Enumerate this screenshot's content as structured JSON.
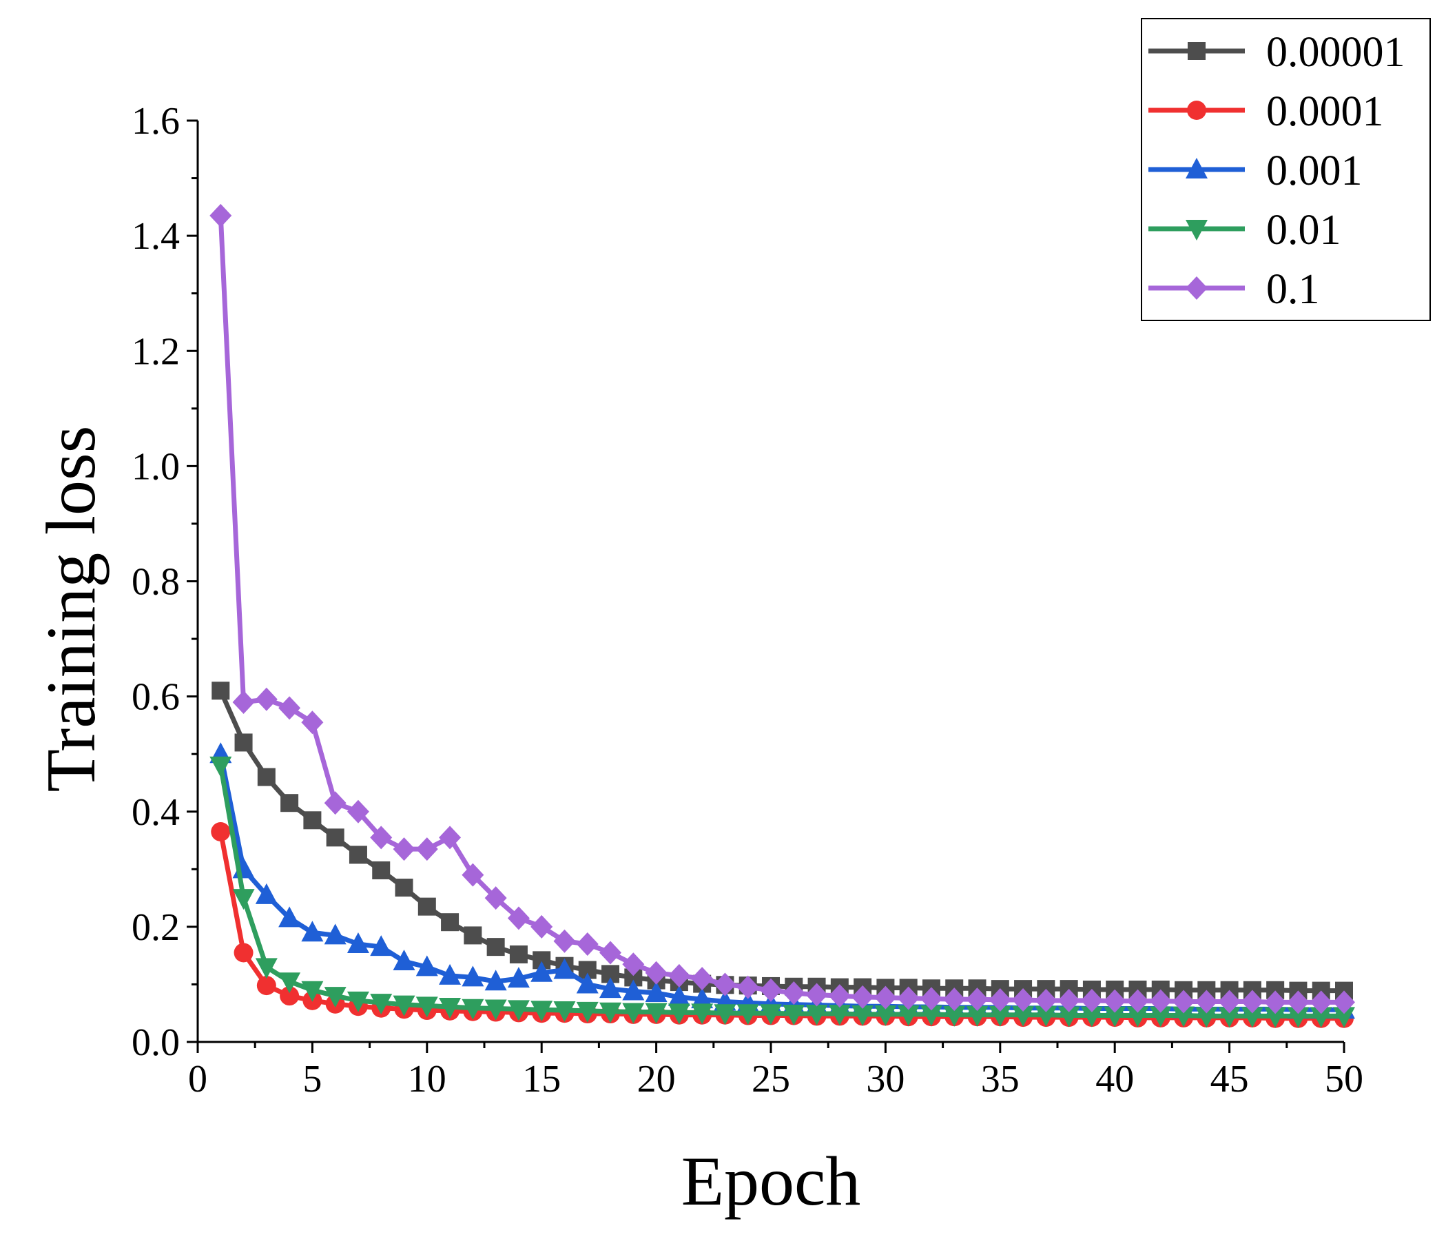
{
  "chart_data": {
    "type": "line",
    "title": "",
    "xlabel": "Epoch",
    "ylabel": "Training loss",
    "xlim": [
      0,
      50
    ],
    "ylim": [
      0.0,
      1.6
    ],
    "xticks": [
      "0",
      "5",
      "10",
      "15",
      "20",
      "25",
      "30",
      "35",
      "40",
      "45",
      "50"
    ],
    "yticks": [
      "0.0",
      "0.2",
      "0.4",
      "0.6",
      "0.8",
      "1.0",
      "1.2",
      "1.4",
      "1.6"
    ],
    "grid": false,
    "legend_position": "top-right",
    "x": [
      1,
      2,
      3,
      4,
      5,
      6,
      7,
      8,
      9,
      10,
      11,
      12,
      13,
      14,
      15,
      16,
      17,
      18,
      19,
      20,
      21,
      22,
      23,
      24,
      25,
      26,
      27,
      28,
      29,
      30,
      31,
      32,
      33,
      34,
      35,
      36,
      37,
      38,
      39,
      40,
      41,
      42,
      43,
      44,
      45,
      46,
      47,
      48,
      49,
      50
    ],
    "series": [
      {
        "name": "0.00001",
        "color": "#4d4d4d",
        "marker": "square",
        "values": [
          0.61,
          0.52,
          0.46,
          0.415,
          0.385,
          0.355,
          0.325,
          0.298,
          0.268,
          0.235,
          0.208,
          0.185,
          0.165,
          0.152,
          0.142,
          0.132,
          0.125,
          0.118,
          0.112,
          0.107,
          0.104,
          0.101,
          0.099,
          0.098,
          0.097,
          0.096,
          0.096,
          0.095,
          0.095,
          0.094,
          0.094,
          0.093,
          0.093,
          0.093,
          0.092,
          0.092,
          0.092,
          0.092,
          0.091,
          0.091,
          0.091,
          0.091,
          0.09,
          0.09,
          0.09,
          0.09,
          0.09,
          0.089,
          0.089,
          0.089
        ]
      },
      {
        "name": "0.0001",
        "color": "#f03030",
        "marker": "circle",
        "values": [
          0.365,
          0.155,
          0.098,
          0.08,
          0.072,
          0.066,
          0.062,
          0.059,
          0.057,
          0.055,
          0.054,
          0.053,
          0.052,
          0.051,
          0.05,
          0.05,
          0.049,
          0.049,
          0.048,
          0.048,
          0.047,
          0.047,
          0.047,
          0.046,
          0.046,
          0.046,
          0.045,
          0.045,
          0.045,
          0.045,
          0.044,
          0.044,
          0.044,
          0.044,
          0.044,
          0.043,
          0.043,
          0.043,
          0.043,
          0.043,
          0.042,
          0.042,
          0.042,
          0.042,
          0.042,
          0.042,
          0.041,
          0.041,
          0.041,
          0.041
        ]
      },
      {
        "name": "0.001",
        "color": "#1f5fd6",
        "marker": "triangle-up",
        "values": [
          0.5,
          0.3,
          0.255,
          0.215,
          0.19,
          0.185,
          0.17,
          0.165,
          0.14,
          0.13,
          0.115,
          0.112,
          0.105,
          0.11,
          0.12,
          0.125,
          0.1,
          0.092,
          0.088,
          0.085,
          0.078,
          0.074,
          0.07,
          0.068,
          0.066,
          0.065,
          0.064,
          0.063,
          0.062,
          0.062,
          0.061,
          0.061,
          0.06,
          0.06,
          0.06,
          0.059,
          0.059,
          0.059,
          0.058,
          0.058,
          0.058,
          0.058,
          0.057,
          0.057,
          0.057,
          0.057,
          0.057,
          0.056,
          0.056,
          0.056
        ]
      },
      {
        "name": "0.01",
        "color": "#2e9e5e",
        "marker": "triangle-down",
        "values": [
          0.48,
          0.25,
          0.13,
          0.105,
          0.09,
          0.08,
          0.072,
          0.068,
          0.065,
          0.063,
          0.061,
          0.059,
          0.058,
          0.057,
          0.056,
          0.055,
          0.054,
          0.053,
          0.052,
          0.052,
          0.051,
          0.051,
          0.05,
          0.05,
          0.05,
          0.049,
          0.049,
          0.049,
          0.048,
          0.048,
          0.048,
          0.048,
          0.047,
          0.047,
          0.047,
          0.047,
          0.047,
          0.046,
          0.046,
          0.046,
          0.046,
          0.046,
          0.046,
          0.045,
          0.045,
          0.045,
          0.045,
          0.045,
          0.045,
          0.045
        ]
      },
      {
        "name": "0.1",
        "color": "#a666d9",
        "marker": "diamond",
        "values": [
          1.435,
          0.59,
          0.595,
          0.58,
          0.555,
          0.415,
          0.4,
          0.355,
          0.335,
          0.335,
          0.355,
          0.29,
          0.25,
          0.215,
          0.2,
          0.175,
          0.17,
          0.155,
          0.135,
          0.12,
          0.115,
          0.11,
          0.1,
          0.095,
          0.09,
          0.085,
          0.082,
          0.08,
          0.078,
          0.077,
          0.076,
          0.075,
          0.074,
          0.074,
          0.073,
          0.073,
          0.072,
          0.072,
          0.072,
          0.071,
          0.071,
          0.071,
          0.07,
          0.07,
          0.07,
          0.07,
          0.069,
          0.069,
          0.069,
          0.069
        ]
      }
    ]
  }
}
